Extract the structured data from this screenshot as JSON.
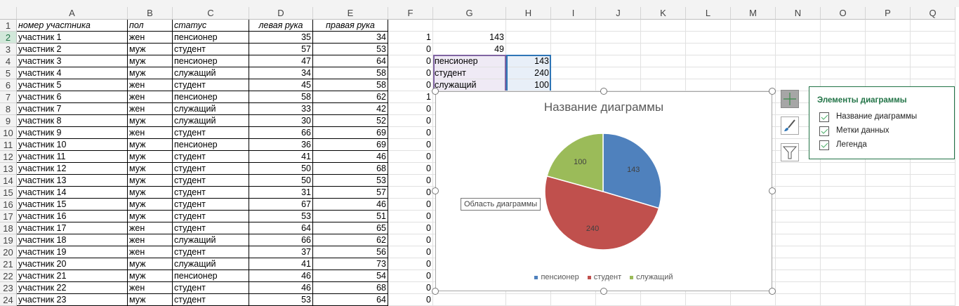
{
  "columns": [
    "A",
    "B",
    "C",
    "D",
    "E",
    "F",
    "G",
    "H",
    "I",
    "J",
    "K",
    "L",
    "M",
    "N",
    "O",
    "P",
    "Q"
  ],
  "header_row": [
    "номер участника",
    "пол",
    "статус",
    "левая рука",
    "правая рука"
  ],
  "rows": [
    [
      "участник 1",
      "жен",
      "пенсионер",
      "35",
      "34"
    ],
    [
      "участник 2",
      "муж",
      "студент",
      "57",
      "53"
    ],
    [
      "участник 3",
      "муж",
      "пенсионер",
      "47",
      "64"
    ],
    [
      "участник 4",
      "муж",
      "служащий",
      "34",
      "58"
    ],
    [
      "участник 5",
      "жен",
      "студент",
      "45",
      "58"
    ],
    [
      "участник 6",
      "жен",
      "пенсионер",
      "58",
      "62"
    ],
    [
      "участник 7",
      "жен",
      "служащий",
      "33",
      "42"
    ],
    [
      "участник 8",
      "муж",
      "служащий",
      "30",
      "52"
    ],
    [
      "участник 9",
      "жен",
      "студент",
      "66",
      "69"
    ],
    [
      "участник 10",
      "муж",
      "пенсионер",
      "36",
      "69"
    ],
    [
      "участник 11",
      "муж",
      "студент",
      "41",
      "46"
    ],
    [
      "участник 12",
      "муж",
      "студент",
      "50",
      "68"
    ],
    [
      "участник 13",
      "муж",
      "студент",
      "50",
      "53"
    ],
    [
      "участник 14",
      "муж",
      "студент",
      "31",
      "57"
    ],
    [
      "участник 15",
      "муж",
      "студент",
      "67",
      "46"
    ],
    [
      "участник 16",
      "муж",
      "студент",
      "53",
      "51"
    ],
    [
      "участник 17",
      "жен",
      "студент",
      "64",
      "65"
    ],
    [
      "участник 18",
      "жен",
      "служащий",
      "66",
      "62"
    ],
    [
      "участник 19",
      "жен",
      "студент",
      "37",
      "56"
    ],
    [
      "участник 20",
      "муж",
      "служащий",
      "41",
      "73"
    ],
    [
      "участник 21",
      "муж",
      "пенсионер",
      "46",
      "54"
    ],
    [
      "участник 22",
      "жен",
      "студент",
      "46",
      "68"
    ],
    [
      "участник 23",
      "муж",
      "студент",
      "53",
      "64"
    ]
  ],
  "col_f": [
    "1",
    "0",
    "0",
    "0",
    "0",
    "1",
    "0",
    "0",
    "0",
    "0",
    "0",
    "0",
    "0",
    "0",
    "0",
    "0",
    "0",
    "0",
    "0",
    "0",
    "0",
    "0",
    "0"
  ],
  "g_values": {
    "g2": "143",
    "g3": "49"
  },
  "summary": [
    [
      "пенсионер",
      "143"
    ],
    [
      "студент",
      "240"
    ],
    [
      "служащий",
      "100"
    ]
  ],
  "chart_data": {
    "type": "pie",
    "title": "Название диаграммы",
    "categories": [
      "пенсионер",
      "студент",
      "служащий"
    ],
    "values": [
      143,
      240,
      100
    ],
    "colors": [
      "#4f81bd",
      "#c0504d",
      "#9bbb59"
    ],
    "legend": "bottom",
    "data_labels": true
  },
  "tooltip": "Область диаграммы",
  "popup": {
    "title": "Элементы диаграммы",
    "items": [
      {
        "label": "Название диаграммы",
        "checked": true
      },
      {
        "label": "Метки данных",
        "checked": true
      },
      {
        "label": "Легенда",
        "checked": true
      }
    ]
  }
}
